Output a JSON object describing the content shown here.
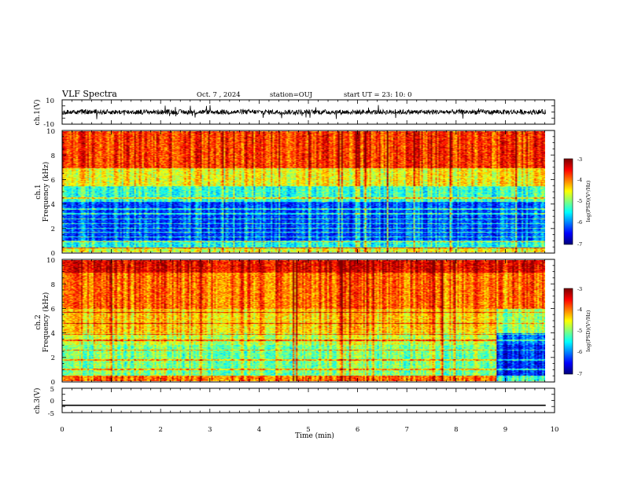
{
  "header": {
    "title": "VLF Spectra",
    "date": "Oct. 7 , 2024",
    "station": "station=OUJ",
    "start": "start  UT  =  23: 10: 0"
  },
  "chart_data": [
    {
      "id": "ch1_waveform",
      "type": "line",
      "ylabel": "ch.1(V)",
      "yticks": [
        "10",
        "-10"
      ],
      "ylim": [
        -10,
        10
      ],
      "xlim": [
        0,
        10
      ],
      "data_end_min": 9.82,
      "amplitude_v": 2.0,
      "color": "#000000"
    },
    {
      "id": "ch1_spectrogram",
      "type": "heatmap",
      "ylabel_line1": "ch.1",
      "ylabel_line2": "Frequency (kHz)",
      "yticks": [
        "10",
        "8",
        "6",
        "4",
        "2",
        "0"
      ],
      "ylim": [
        0,
        10
      ],
      "xlim": [
        0,
        10
      ],
      "colorbar": {
        "label": "log(PSD)(V²/Hz)",
        "ticks": [
          "-3",
          "-4",
          "-5",
          "-6",
          "-7"
        ],
        "range": [
          -7,
          -3
        ]
      },
      "bands_khz": [
        {
          "f0": 0.0,
          "f1": 0.4,
          "level": -4.6
        },
        {
          "f0": 0.4,
          "f1": 1.0,
          "level": -5.4
        },
        {
          "f0": 1.0,
          "f1": 4.2,
          "level": -6.2
        },
        {
          "f0": 4.2,
          "f1": 5.5,
          "level": -5.3
        },
        {
          "f0": 5.5,
          "f1": 7.0,
          "level": -4.5
        },
        {
          "f0": 7.0,
          "f1": 10.0,
          "level": -3.7
        }
      ],
      "lines_khz": [
        0.4,
        0.9,
        1.3,
        1.7,
        2.0,
        2.4,
        2.8,
        3.2,
        3.6,
        4.5
      ]
    },
    {
      "id": "ch2_spectrogram",
      "type": "heatmap",
      "ylabel_line1": "ch.2",
      "ylabel_line2": "Frequency (kHz)",
      "yticks": [
        "10",
        "8",
        "6",
        "4",
        "2",
        "0"
      ],
      "ylim": [
        0,
        10
      ],
      "xlim": [
        0,
        10
      ],
      "colorbar": {
        "label": "log(PSD)(V²/Hz)",
        "ticks": [
          "-3",
          "-4",
          "-5",
          "-6",
          "-7"
        ],
        "range": [
          -7,
          -3
        ]
      },
      "bands_khz": [
        {
          "f0": 0.0,
          "f1": 0.5,
          "level": -3.9
        },
        {
          "f0": 0.5,
          "f1": 3.0,
          "level": -5.0
        },
        {
          "f0": 3.0,
          "f1": 4.0,
          "level": -4.7
        },
        {
          "f0": 4.0,
          "f1": 6.0,
          "level": -4.3
        },
        {
          "f0": 6.0,
          "f1": 9.0,
          "level": -3.9
        },
        {
          "f0": 9.0,
          "f1": 10.0,
          "level": -3.4
        }
      ],
      "lines_khz": [
        5.7,
        4.8,
        3.9,
        3.4,
        2.6,
        1.8,
        1.0
      ],
      "quiet_after_min": 8.8
    },
    {
      "id": "ch3_waveform",
      "type": "line",
      "ylabel": "ch.3(V)",
      "yticks": [
        "5",
        "0",
        "-5"
      ],
      "ylim": [
        -5,
        5
      ],
      "xlim": [
        0,
        10
      ],
      "data_end_min": 9.82,
      "value_v": -2.0,
      "color": "#000000"
    }
  ],
  "x_axis": {
    "label": "Time (min)",
    "ticks": [
      "0",
      "1",
      "2",
      "3",
      "4",
      "5",
      "6",
      "7",
      "8",
      "9",
      "10"
    ]
  }
}
